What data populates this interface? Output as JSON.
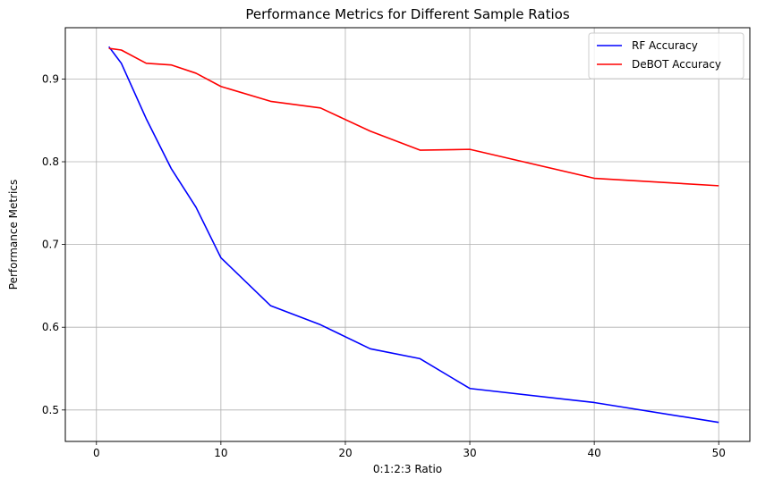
{
  "chart_data": {
    "type": "line",
    "title": "Performance Metrics for Different Sample Ratios",
    "xlabel": "0:1:2:3 Ratio",
    "ylabel": "Performance Metrics",
    "xlim": [
      -2.5,
      52.5
    ],
    "ylim": [
      0.462,
      0.962
    ],
    "xticks": [
      0,
      10,
      20,
      30,
      40,
      50
    ],
    "yticks": [
      0.5,
      0.6,
      0.7,
      0.8,
      0.9
    ],
    "grid": true,
    "legend_position": "upper right",
    "x": [
      1,
      2,
      4,
      6,
      8,
      10,
      14,
      18,
      22,
      26,
      30,
      40,
      50
    ],
    "series": [
      {
        "name": "RF Accuracy",
        "color": "#0000ff",
        "values": [
          0.939,
          0.919,
          0.852,
          0.792,
          0.745,
          0.684,
          0.626,
          0.603,
          0.574,
          0.562,
          0.526,
          0.509,
          0.485
        ]
      },
      {
        "name": "DeBOT Accuracy",
        "color": "#ff0000",
        "values": [
          0.937,
          0.935,
          0.919,
          0.917,
          0.907,
          0.891,
          0.873,
          0.865,
          0.837,
          0.814,
          0.815,
          0.78,
          0.771
        ]
      }
    ]
  }
}
